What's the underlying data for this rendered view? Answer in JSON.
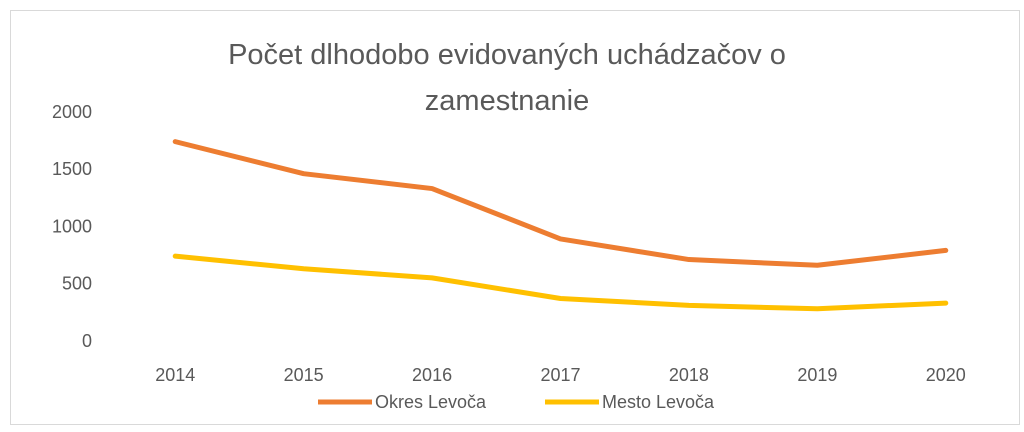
{
  "chart_data": {
    "type": "line",
    "title": "Počet dlhodobo evidovaných uchádzačov o zamestnanie",
    "categories": [
      "2014",
      "2015",
      "2016",
      "2017",
      "2018",
      "2019",
      "2020"
    ],
    "series": [
      {
        "name": "Okres Levoča",
        "color": "#ED7D31",
        "values": [
          1750,
          1470,
          1340,
          900,
          720,
          670,
          800
        ]
      },
      {
        "name": "Mesto Levoča",
        "color": "#FFC000",
        "values": [
          750,
          640,
          560,
          380,
          320,
          290,
          340
        ]
      }
    ],
    "ylim": [
      0,
      2000
    ],
    "yticks": [
      0,
      500,
      1000,
      1500,
      2000
    ],
    "grid": false,
    "legend": "bottom"
  }
}
